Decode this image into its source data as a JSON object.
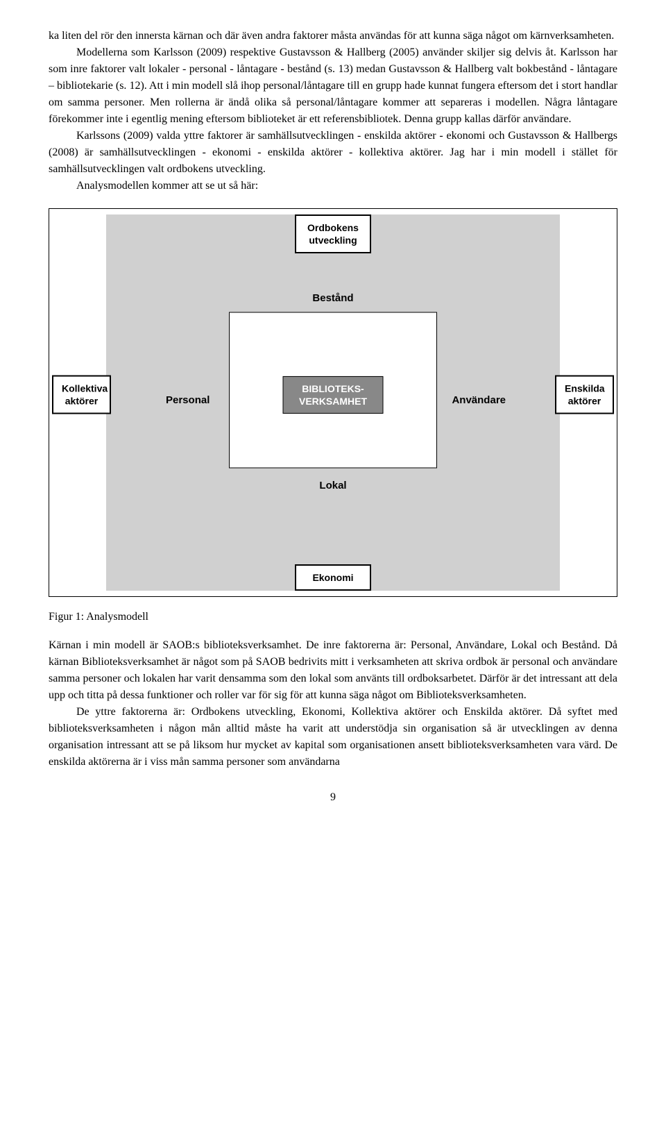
{
  "paragraphs": {
    "p1": "ka liten del rör den innersta kärnan och där även andra faktorer måsta användas för att kunna säga något om kärnverksamheten.",
    "p2": "Modellerna som Karlsson (2009) respektive Gustavsson & Hallberg (2005) använder skiljer sig delvis åt. Karlsson har som inre faktorer valt lokaler - personal - låntagare - bestånd (s. 13) medan Gustavsson & Hallberg valt bokbestånd - låntagare – bibliotekarie (s. 12). Att i min modell slå ihop personal/låntagare till en grupp hade kunnat fungera eftersom det i stort handlar om samma personer. Men rollerna är ändå olika så personal/låntagare kommer att separeras i modellen. Några låntagare förekommer inte i egentlig mening eftersom biblioteket är ett referensbibliotek. Denna grupp kallas därför användare.",
    "p3": "Karlssons (2009) valda yttre faktorer är samhällsutvecklingen - enskilda aktörer - ekonomi och Gustavsson & Hallbergs (2008) är samhällsutvecklingen - ekonomi - enskilda aktörer - kollektiva aktörer. Jag har i min modell i stället för samhällsutvecklingen valt ordbokens utveckling.",
    "p4": "Analysmodellen kommer att se ut så här:",
    "p5": "Kärnan i min modell är SAOB:s biblioteksverksamhet. De inre faktorerna är: Personal, Användare, Lokal och Bestånd. Då kärnan Biblioteksverksamhet är något som på SAOB bedrivits mitt i verksamheten att skriva ordbok är personal och användare samma personer och lokalen har varit densamma som den lokal som använts till ordboksarbetet. Därför är det intressant att dela upp och titta på dessa funktioner och roller var för sig för att kunna säga något om Biblioteksverksamheten.",
    "p6": "De yttre faktorerna är: Ordbokens utveckling, Ekonomi, Kollektiva aktörer och Enskilda aktörer. Då syftet med biblioteksverksamheten i någon mån alltid måste ha varit att understödja sin organisation så är utvecklingen av denna organisation intressant att se på liksom hur mycket av kapital som organisationen ansett biblioteksverksamheten vara värd. De enskilda aktörerna är i viss mån samma personer som användarna"
  },
  "diagram": {
    "top_box": "Ordbokens\nutveckling",
    "bottom_box": "Ekonomi",
    "left_box": "Kollektiva\naktörer",
    "right_box": "Enskilda\naktörer",
    "center": "BIBLIOTEKS-\nVERKSAMHET",
    "label_top": "Bestånd",
    "label_bottom": "Lokal",
    "label_left": "Personal",
    "label_right": "Användare"
  },
  "figure_caption": "Figur 1: Analysmodell",
  "page_number": "9"
}
